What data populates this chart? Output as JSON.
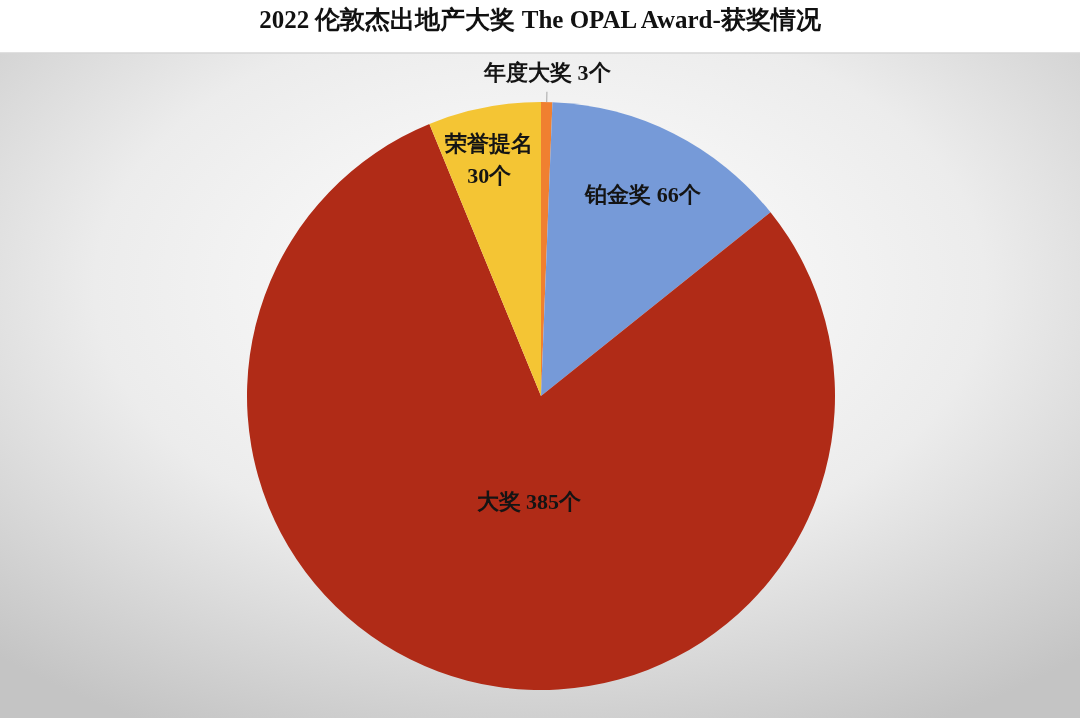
{
  "chart_data": {
    "type": "pie",
    "title": "2022 伦敦杰出地产大奖 The OPAL Award-获奖情况",
    "categories": [
      "年度大奖",
      "铂金奖",
      "大奖",
      "荣誉提名"
    ],
    "values": [
      3,
      66,
      385,
      30
    ],
    "colors": [
      "#f08030",
      "#769ad8",
      "#b02b17",
      "#f4c534"
    ],
    "value_labels": [
      "3个",
      "66个",
      "385个",
      "30个"
    ]
  }
}
